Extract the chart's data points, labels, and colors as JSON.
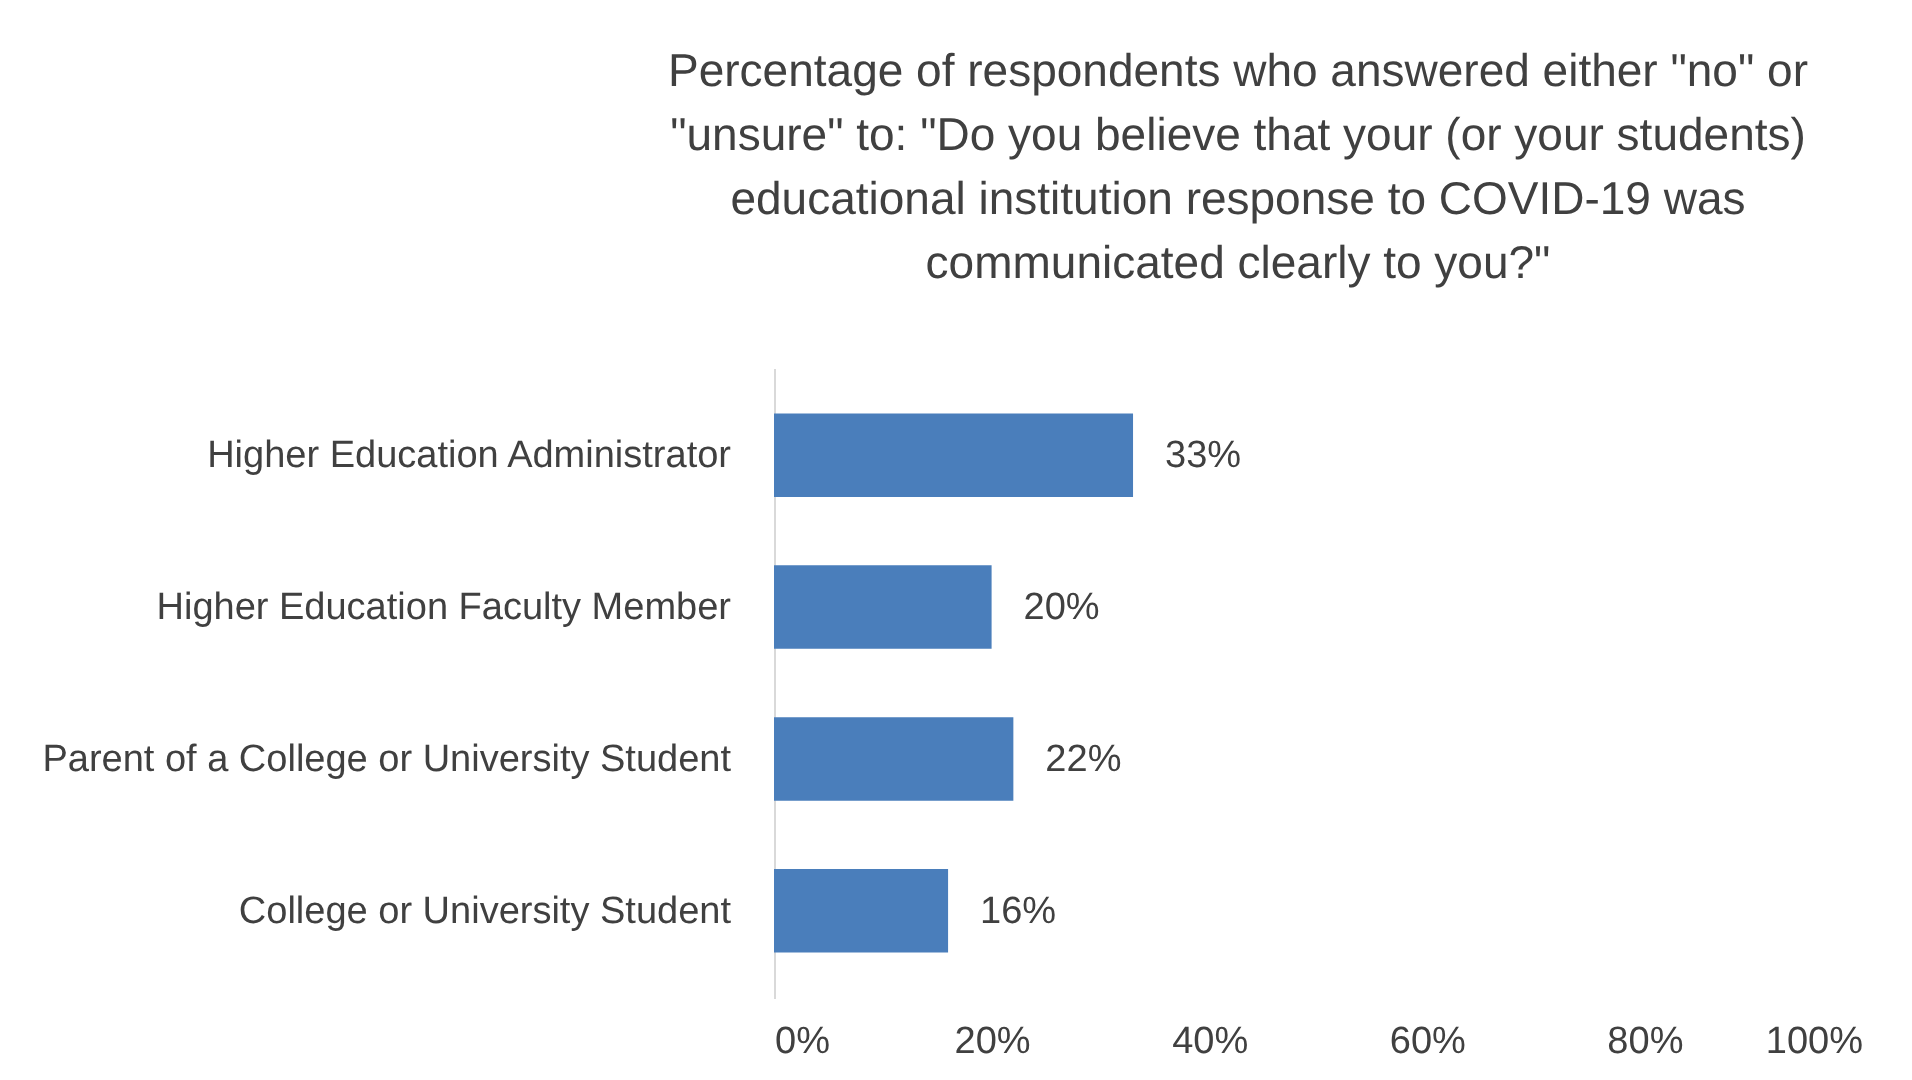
{
  "chart_data": {
    "type": "bar",
    "orientation": "horizontal",
    "title": "Percentage of respondents who answered either \"no\" or\n\"unsure\" to: \"Do you believe that your (or your students)\neducational institution response to COVID-19 was\ncommunicated clearly to you?\"",
    "categories": [
      "Higher Education Administrator",
      "Higher Education Faculty Member",
      "Parent of a College or University Student",
      "College or University Student"
    ],
    "values": [
      33,
      20,
      22,
      16
    ],
    "value_labels": [
      "33%",
      "20%",
      "22%",
      "16%"
    ],
    "color": "#4a7ebb",
    "xlim": [
      0,
      100
    ],
    "xticks": [
      {
        "value": 0,
        "label": "0%"
      },
      {
        "value": 20,
        "label": "20%"
      },
      {
        "value": 40,
        "label": "40%"
      },
      {
        "value": 60,
        "label": "60%"
      },
      {
        "value": 80,
        "label": "80%"
      },
      {
        "value": 100,
        "label": "100%"
      }
    ],
    "grid": false
  }
}
